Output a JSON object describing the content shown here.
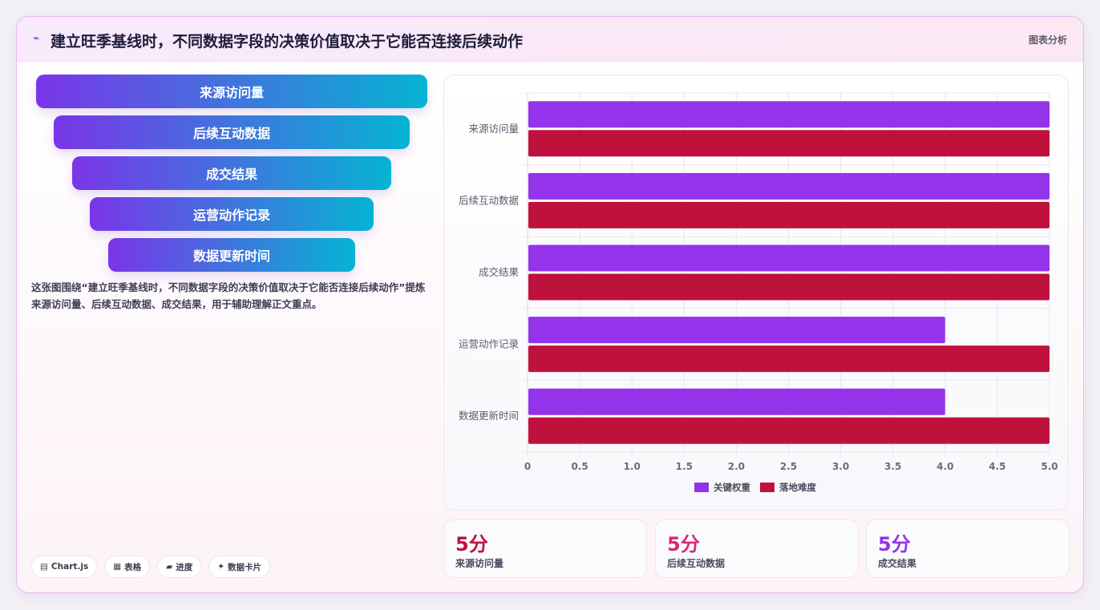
{
  "header": {
    "title": "建立旺季基线时，不同数据字段的决策价值取决于它能否连接后续动作",
    "tag": "图表分析"
  },
  "funnel": [
    {
      "label": "来源访问量"
    },
    {
      "label": "后续互动数据"
    },
    {
      "label": "成交结果"
    },
    {
      "label": "运营动作记录"
    },
    {
      "label": "数据更新时间"
    }
  ],
  "description": "这张图围绕“建立旺季基线时，不同数据字段的决策价值取决于它能否连接后续动作”提炼来源访问量、后续互动数据、成交结果，用于辅助理解正文重点。",
  "chips": [
    {
      "icon": "chart-icon",
      "glyph": "▤",
      "label": "Chart.js"
    },
    {
      "icon": "table-icon",
      "glyph": "▦",
      "label": "表格"
    },
    {
      "icon": "progress-icon",
      "glyph": "▰",
      "label": "进度"
    },
    {
      "icon": "card-icon",
      "glyph": "✦",
      "label": "数据卡片"
    }
  ],
  "chart_data": {
    "type": "bar",
    "orientation": "horizontal",
    "categories": [
      "来源访问量",
      "后续互动数据",
      "成交结果",
      "运营动作记录",
      "数据更新时间"
    ],
    "series": [
      {
        "name": "关键权重",
        "values": [
          5,
          5,
          5,
          4,
          4
        ],
        "color": "#9333ea"
      },
      {
        "name": "落地难度",
        "values": [
          5,
          5,
          5,
          5,
          5
        ],
        "color": "#be123c"
      }
    ],
    "xlim": [
      0,
      5
    ],
    "xticks": [
      "0",
      "0.5",
      "1.0",
      "1.5",
      "2.0",
      "2.5",
      "3.0",
      "3.5",
      "4.0",
      "4.5",
      "5.0"
    ],
    "grid": true,
    "legend": "bottom"
  },
  "stats": [
    {
      "value": "5分",
      "label": "来源访问量",
      "color": "#be123c"
    },
    {
      "value": "5分",
      "label": "后续互动数据",
      "color": "#db2777"
    },
    {
      "value": "5分",
      "label": "成交结果",
      "color": "#9333ea"
    }
  ]
}
